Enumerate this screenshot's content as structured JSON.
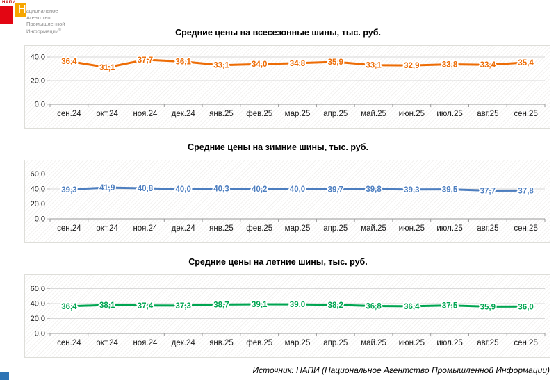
{
  "logo": {
    "mini": "НАПИ",
    "name_first_letter": "Н",
    "name_line1_rest": "ациональное",
    "line2": "Агентство",
    "line3": "Промышленной",
    "line4": "Информации",
    "reg": "®",
    "colors": {
      "red_square": "#E30613",
      "orange_square": "#F7A600",
      "gray_text": "#8C8C8C"
    }
  },
  "chart_data": [
    {
      "type": "line",
      "title": "Средние цены на всесезонные шины, тыс. руб.",
      "categories": [
        "сен.24",
        "окт.24",
        "ноя.24",
        "дек.24",
        "янв.25",
        "фев.25",
        "мар.25",
        "апр.25",
        "май.25",
        "июн.25",
        "июл.25",
        "авг.25",
        "сен.25"
      ],
      "values": [
        36.4,
        31.1,
        37.7,
        36.1,
        33.1,
        34.0,
        34.8,
        35.9,
        33.1,
        32.9,
        33.8,
        33.4,
        35.4
      ],
      "color": "#ED6C05",
      "xlabel": "",
      "ylabel": "",
      "ylim": [
        0,
        40
      ],
      "y_ticks": [
        0,
        20,
        40
      ],
      "grid": true,
      "legend": "none",
      "decimal_separator": ","
    },
    {
      "type": "line",
      "title": "Средние цены на зимние шины, тыс. руб.",
      "categories": [
        "сен.24",
        "окт.24",
        "ноя.24",
        "дек.24",
        "янв.25",
        "фев.25",
        "мар.25",
        "апр.25",
        "май.25",
        "июн.25",
        "июл.25",
        "авг.25",
        "сен.25"
      ],
      "values": [
        39.3,
        41.9,
        40.8,
        40.0,
        40.3,
        40.2,
        40.0,
        39.7,
        39.8,
        39.3,
        39.5,
        37.7,
        37.8
      ],
      "color": "#4D7EBF",
      "xlabel": "",
      "ylabel": "",
      "ylim": [
        0,
        60
      ],
      "y_ticks": [
        0,
        20,
        40,
        60
      ],
      "grid": true,
      "legend": "none",
      "decimal_separator": ","
    },
    {
      "type": "line",
      "title": "Средние цены на летние шины, тыс. руб.",
      "categories": [
        "сен.24",
        "окт.24",
        "ноя.24",
        "дек.24",
        "янв.25",
        "фев.25",
        "мар.25",
        "апр.25",
        "май.25",
        "июн.25",
        "июл.25",
        "авг.25",
        "сен.25"
      ],
      "values": [
        36.4,
        38.1,
        37.4,
        37.3,
        38.7,
        39.1,
        39.0,
        38.2,
        36.8,
        36.4,
        37.5,
        35.9,
        36.0
      ],
      "color": "#00A551",
      "xlabel": "",
      "ylabel": "",
      "ylim": [
        0,
        60
      ],
      "y_ticks": [
        0,
        20,
        40,
        60
      ],
      "grid": true,
      "legend": "none",
      "decimal_separator": ","
    }
  ],
  "footer": {
    "source": "Источник: НАПИ (Национальное Агентство Промышленной Информации)",
    "corner_color": "#2E74B5"
  }
}
